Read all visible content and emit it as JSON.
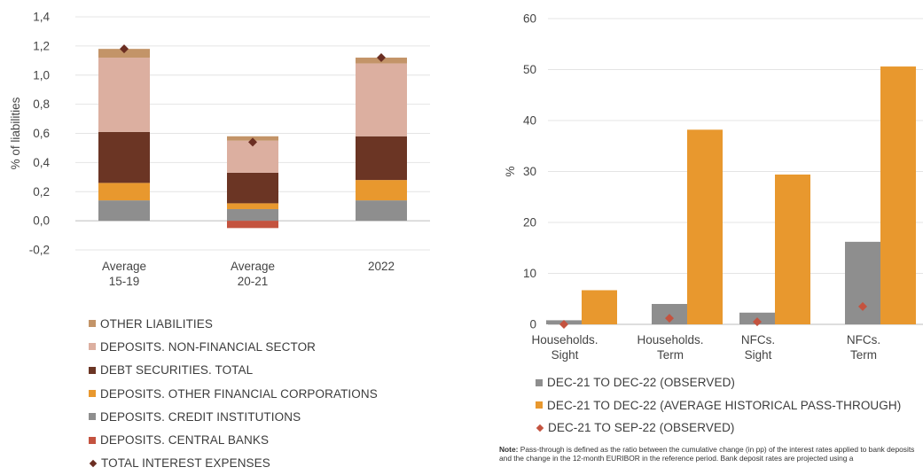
{
  "colors": {
    "other_liabilities": "#c39468",
    "deposits_non_financial": "#dcafa0",
    "debt_securities": "#6b3524",
    "deposits_other_financial": "#e8982e",
    "deposits_credit_institutions": "#8e8e8e",
    "deposits_central_banks": "#c4533f",
    "total_interest_marker": "#6b2e22",
    "observed_bar": "#8e8e8e",
    "historical_bar": "#e8982e",
    "sep_marker": "#c4533f"
  },
  "chart_data": [
    {
      "type": "bar",
      "stacked": true,
      "title": "",
      "ylabel": "% of liabilities",
      "ylim": [
        -0.2,
        1.4
      ],
      "yticks": [
        "-0,2",
        "0,0",
        "0,2",
        "0,4",
        "0,6",
        "0,8",
        "1,0",
        "1,2",
        "1,4"
      ],
      "categories": [
        [
          "Average",
          "15-19"
        ],
        [
          "Average",
          "20-21"
        ],
        [
          "2022"
        ]
      ],
      "series": [
        {
          "name": "DEPOSITS. CREDIT INSTITUTIONS",
          "color_key": "deposits_credit_institutions",
          "values": [
            0.14,
            0.08,
            0.14
          ]
        },
        {
          "name": "DEPOSITS. CENTRAL BANKS",
          "color_key": "deposits_central_banks",
          "values": [
            0.0,
            -0.05,
            0.0
          ]
        },
        {
          "name": "DEPOSITS. OTHER FINANCIAL CORPORATIONS",
          "color_key": "deposits_other_financial",
          "values": [
            0.12,
            0.04,
            0.14
          ]
        },
        {
          "name": "DEBT SECURITIES. TOTAL",
          "color_key": "debt_securities",
          "values": [
            0.35,
            0.21,
            0.3
          ]
        },
        {
          "name": "DEPOSITS. NON-FINANCIAL SECTOR",
          "color_key": "deposits_non_financial",
          "values": [
            0.51,
            0.22,
            0.5
          ]
        },
        {
          "name": "OTHER LIABILITIES",
          "color_key": "other_liabilities",
          "values": [
            0.06,
            0.03,
            0.04
          ]
        }
      ],
      "markers": {
        "name": "TOTAL INTEREST EXPENSES",
        "color_key": "total_interest_marker",
        "values": [
          1.18,
          0.54,
          1.12
        ]
      },
      "legend": [
        {
          "label": "OTHER LIABILITIES",
          "color_key": "other_liabilities",
          "shape": "square"
        },
        {
          "label": "DEPOSITS. NON-FINANCIAL SECTOR",
          "color_key": "deposits_non_financial",
          "shape": "square"
        },
        {
          "label": "DEBT SECURITIES. TOTAL",
          "color_key": "debt_securities",
          "shape": "square"
        },
        {
          "label": "DEPOSITS. OTHER FINANCIAL CORPORATIONS",
          "color_key": "deposits_other_financial",
          "shape": "square"
        },
        {
          "label": "DEPOSITS. CREDIT INSTITUTIONS",
          "color_key": "deposits_credit_institutions",
          "shape": "square"
        },
        {
          "label": "DEPOSITS. CENTRAL BANKS",
          "color_key": "deposits_central_banks",
          "shape": "square"
        },
        {
          "label": "TOTAL INTEREST EXPENSES",
          "color_key": "total_interest_marker",
          "shape": "diamond"
        }
      ],
      "legend_position": "bottom",
      "grid": true
    },
    {
      "type": "bar",
      "stacked": false,
      "title": "",
      "ylabel": "%",
      "ylim": [
        0,
        60
      ],
      "yticks": [
        "0",
        "10",
        "20",
        "30",
        "40",
        "50",
        "60"
      ],
      "categories": [
        [
          "Households.",
          "Sight"
        ],
        [
          "Households.",
          "Term"
        ],
        [
          "NFCs.",
          "Sight"
        ],
        [
          "NFCs.",
          "Term"
        ]
      ],
      "series": [
        {
          "name": "DEC-21 TO DEC-22 (OBSERVED)",
          "color_key": "observed_bar",
          "values": [
            0.8,
            4.0,
            2.3,
            16.2
          ]
        },
        {
          "name": "DEC-21 TO DEC-22 (AVERAGE HISTORICAL PASS-THROUGH)",
          "color_key": "historical_bar",
          "values": [
            6.7,
            38.2,
            29.4,
            50.6
          ]
        }
      ],
      "markers": {
        "name": "DEC-21 TO SEP-22 (OBSERVED)",
        "color_key": "sep_marker",
        "values": [
          0.0,
          1.2,
          0.5,
          3.5
        ]
      },
      "legend": [
        {
          "label": "DEC-21 TO DEC-22 (OBSERVED)",
          "color_key": "observed_bar",
          "shape": "square"
        },
        {
          "label": "DEC-21 TO DEC-22 (AVERAGE HISTORICAL PASS-THROUGH)",
          "color_key": "historical_bar",
          "shape": "square"
        },
        {
          "label": "DEC-21 TO SEP-22 (OBSERVED)",
          "color_key": "sep_marker",
          "shape": "diamond"
        }
      ],
      "legend_position": "bottom",
      "grid": true
    }
  ],
  "note": {
    "label": "Note:",
    "text": "Pass-through is defined as the ratio between the cumulative change (in pp) of the interest rates applied to bank deposits and the change in the 12-month EURIBOR in the reference period. Bank deposit rates are projected using a"
  }
}
